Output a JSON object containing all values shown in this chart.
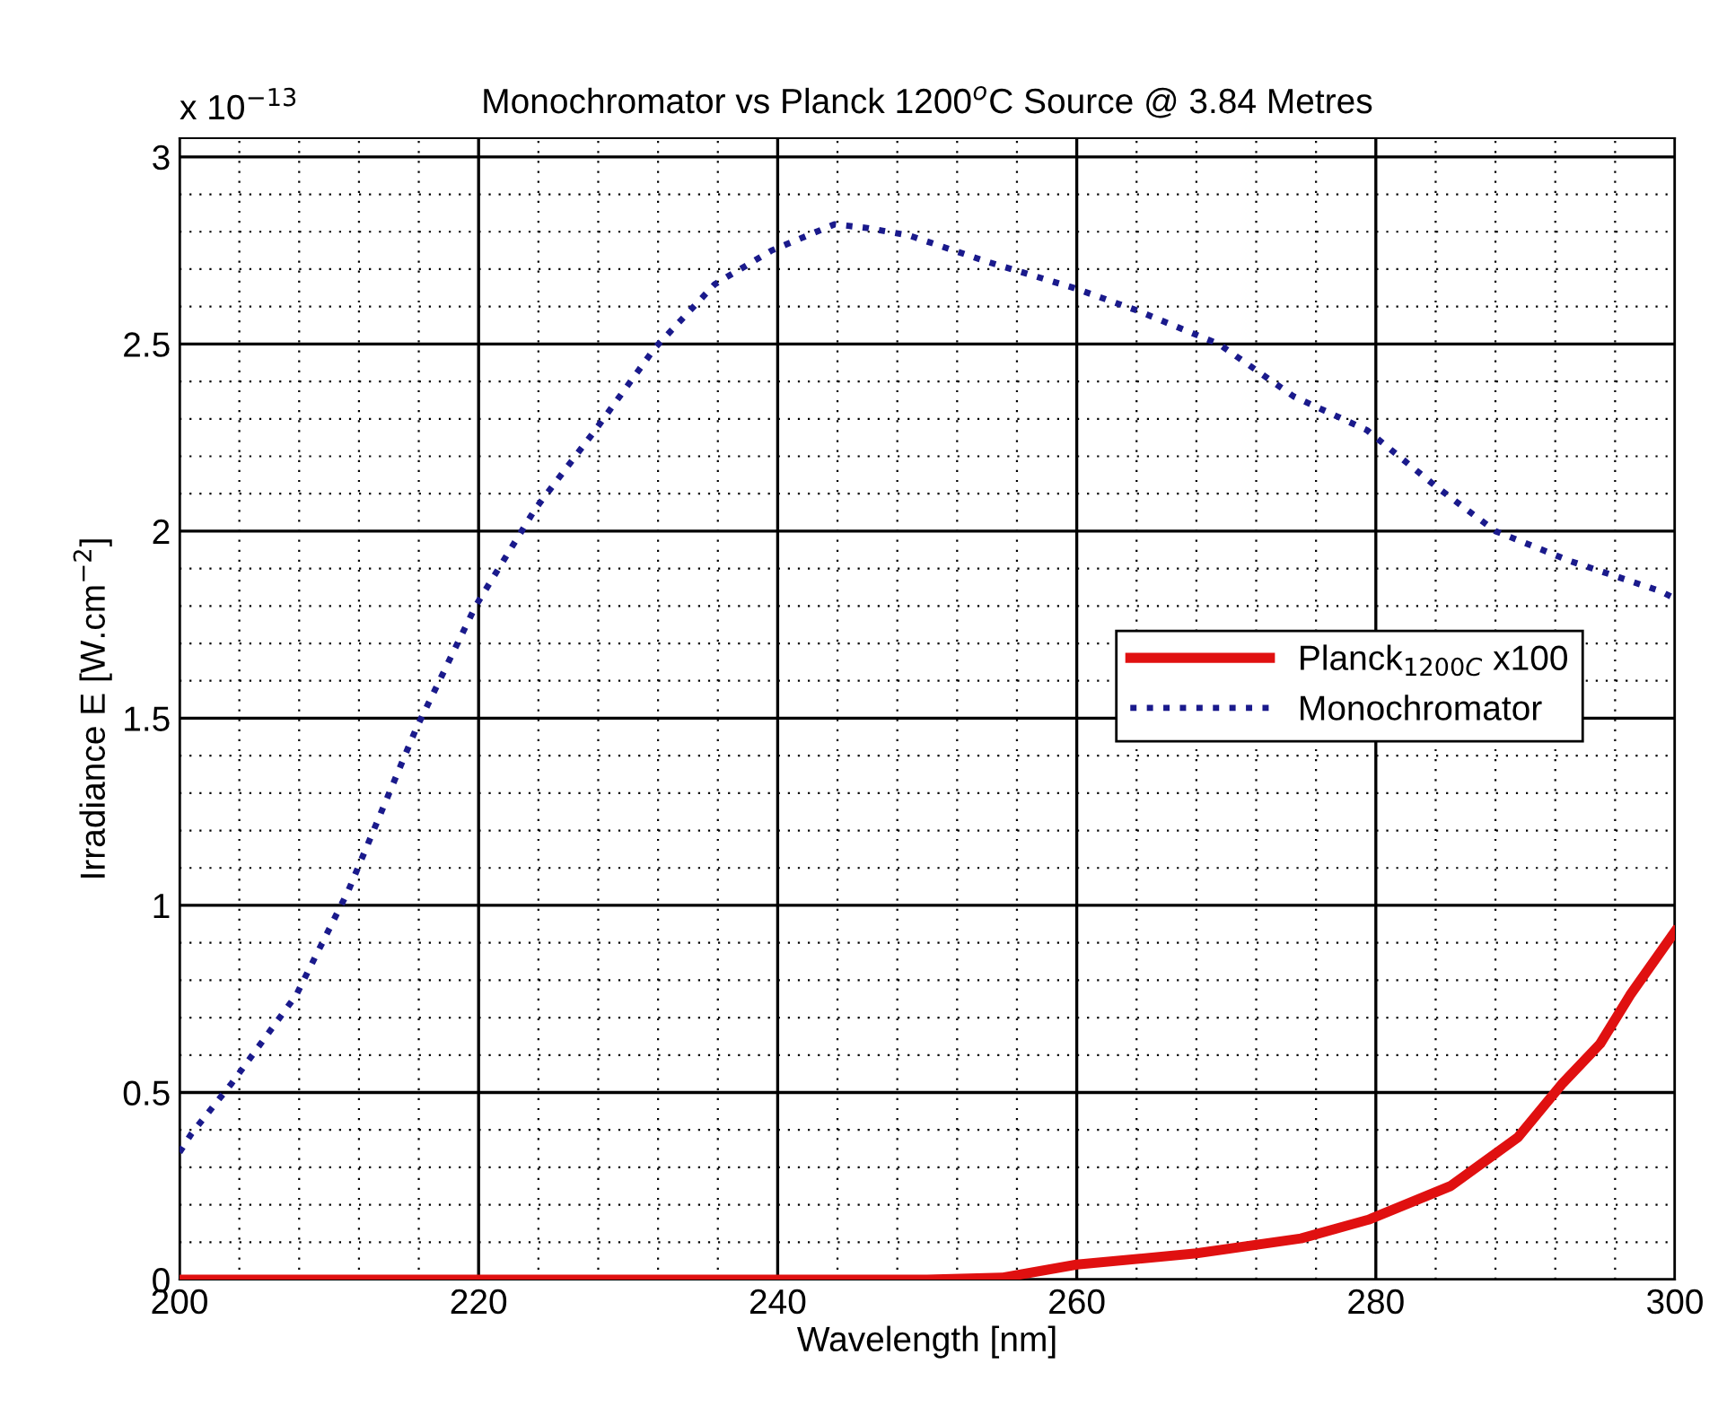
{
  "chart_data": {
    "type": "line",
    "title": "Monochromator vs Planck 1200$^{o}$C Source @ 3.84 Metres",
    "xlabel": "Wavelength [nm]",
    "ylabel": "Irradiance E [W.cm$^{−2}$]",
    "annotations": [
      "x 10$^{−13}$"
    ],
    "series": [
      {
        "name": "Planck$_{1200C}$ x100",
        "color": "#e01010",
        "line_style": "solid",
        "x": [
          200,
          220,
          240,
          250,
          255,
          260,
          268,
          275,
          279.5,
          285,
          289.5,
          292.5,
          295,
          297,
          300
        ],
        "values": [
          0.0,
          0.0,
          0.0,
          0.0,
          0.005,
          0.04,
          0.07,
          0.11,
          0.16,
          0.25,
          0.38,
          0.525,
          0.63,
          0.76,
          0.93
        ]
      },
      {
        "name": "Monochromator",
        "color": "#1a1a8c",
        "line_style": "dotted",
        "x": [
          200,
          200.8,
          203.5,
          207.8,
          211.3,
          215.8,
          219.8,
          223.8,
          227.8,
          231.8,
          235.8,
          239.6,
          243.8,
          246,
          248.8,
          254,
          259.8,
          264,
          269.5,
          274.5,
          279.4,
          284,
          288,
          293,
          299,
          300
        ],
        "values": [
          0.34,
          0.39,
          0.525,
          0.76,
          1.04,
          1.47,
          1.8,
          2.06,
          2.27,
          2.49,
          2.66,
          2.75,
          2.82,
          2.81,
          2.79,
          2.72,
          2.65,
          2.59,
          2.5,
          2.36,
          2.27,
          2.12,
          2.0,
          1.92,
          1.84,
          1.82
        ]
      }
    ],
    "xlim": [
      200,
      300
    ],
    "ylim": [
      0,
      3.05
    ],
    "xticks": [
      200,
      {
        "value": 204,
        "label": null
      },
      {
        "value": 208,
        "label": null
      },
      {
        "value": 212,
        "label": null
      },
      {
        "value": 216,
        "label": null
      },
      220,
      {
        "value": 224,
        "label": null
      },
      {
        "value": 228,
        "label": null
      },
      {
        "value": 232,
        "label": null
      },
      {
        "value": 236,
        "label": null
      },
      240,
      {
        "value": 244,
        "label": null
      },
      {
        "value": 248,
        "label": null
      },
      {
        "value": 252,
        "label": null
      },
      {
        "value": 256,
        "label": null
      },
      260,
      {
        "value": 264,
        "label": null
      },
      {
        "value": 268,
        "label": null
      },
      {
        "value": 272,
        "label": null
      },
      {
        "value": 276,
        "label": null
      },
      280,
      {
        "value": 284,
        "label": null
      },
      {
        "value": 288,
        "label": null
      },
      {
        "value": 292,
        "label": null
      },
      {
        "value": 296,
        "label": null
      },
      300
    ],
    "yticks": [
      0,
      {
        "value": 0.1,
        "label": null
      },
      {
        "value": 0.2,
        "label": null
      },
      {
        "value": 0.3,
        "label": null
      },
      {
        "value": 0.4,
        "label": null
      },
      0.5,
      {
        "value": 0.6,
        "label": null
      },
      {
        "value": 0.7,
        "label": null
      },
      {
        "value": 0.8,
        "label": null
      },
      {
        "value": 0.9,
        "label": null
      },
      1,
      {
        "value": 1.1,
        "label": null
      },
      {
        "value": 1.2,
        "label": null
      },
      {
        "value": 1.3,
        "label": null
      },
      {
        "value": 1.4,
        "label": null
      },
      1.5,
      {
        "value": 1.6,
        "label": null
      },
      {
        "value": 1.7,
        "label": null
      },
      {
        "value": 1.8,
        "label": null
      },
      {
        "value": 1.9,
        "label": null
      },
      2,
      {
        "value": 2.1,
        "label": null
      },
      {
        "value": 2.2,
        "label": null
      },
      {
        "value": 2.3,
        "label": null
      },
      {
        "value": 2.4,
        "label": null
      },
      2.5,
      {
        "value": 2.6,
        "label": null
      },
      {
        "value": 2.7,
        "label": null
      },
      {
        "value": 2.8,
        "label": null
      },
      {
        "value": 2.9,
        "label": null
      },
      3
    ],
    "grid": true,
    "legend": "right",
    "marker": "none"
  }
}
